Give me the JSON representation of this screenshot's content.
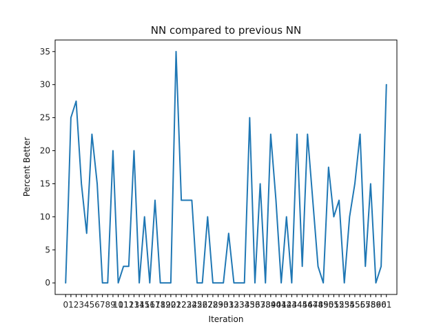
{
  "chart_data": {
    "type": "line",
    "title": "NN compared to previous NN",
    "xlabel": "Iteration",
    "ylabel": "Percent Better",
    "xlim": [
      -2,
      63
    ],
    "ylim": [
      -1.75,
      36.75
    ],
    "xticks": [
      0,
      1,
      2,
      3,
      4,
      5,
      6,
      7,
      8,
      9,
      10,
      11,
      12,
      13,
      14,
      15,
      16,
      17,
      18,
      19,
      20,
      21,
      22,
      23,
      24,
      25,
      26,
      27,
      28,
      29,
      30,
      31,
      32,
      33,
      34,
      35,
      36,
      37,
      38,
      39,
      40,
      41,
      42,
      43,
      44,
      45,
      46,
      47,
      48,
      49,
      50,
      51,
      52,
      53,
      54,
      55,
      56,
      57,
      58,
      59,
      60,
      61
    ],
    "yticks": [
      0,
      5,
      10,
      15,
      20,
      25,
      30,
      35
    ],
    "grid": false,
    "legend": "none",
    "series": [
      {
        "color": "#1f77b4",
        "x": [
          0,
          0.5,
          1,
          2,
          3,
          4,
          5,
          6,
          7,
          8,
          9,
          10,
          11,
          12,
          13,
          14,
          15,
          16,
          17,
          18,
          19,
          20,
          21,
          22,
          23,
          24,
          25,
          26,
          27,
          28,
          29,
          30,
          31,
          32,
          33,
          34,
          35,
          36,
          37,
          38,
          39,
          40,
          41,
          42,
          43,
          44,
          45,
          46,
          47,
          48,
          49,
          50,
          51,
          52,
          53,
          54,
          55,
          56,
          57,
          58,
          59,
          60,
          61
        ],
        "y": [
          0,
          12,
          25,
          27.5,
          15,
          7.5,
          22.5,
          15,
          0,
          0,
          20,
          0,
          2.5,
          2.5,
          20,
          0,
          10,
          0,
          12.5,
          0,
          0,
          0,
          35,
          12.5,
          12.5,
          12.5,
          0,
          0,
          10,
          0,
          0,
          0,
          7.5,
          0,
          0,
          0,
          25,
          0,
          15,
          0,
          22.5,
          12.5,
          0,
          10,
          0,
          22.5,
          2.5,
          22.5,
          12.5,
          2.5,
          0,
          17.5,
          10,
          12.5,
          0,
          10,
          15,
          22.5,
          2.5,
          15,
          0,
          2.5,
          30
        ]
      }
    ]
  }
}
